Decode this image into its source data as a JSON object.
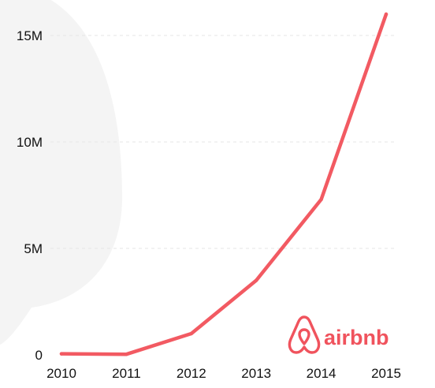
{
  "colors": {
    "line": "#f25a62",
    "grid": "#e6e6e6",
    "text": "#111111",
    "watermark": "#f4f4f4"
  },
  "brand": {
    "name": "airbnb",
    "icon": "airbnb-belo-logo",
    "color": "#f0535d"
  },
  "chart_data": {
    "type": "line",
    "title": "",
    "xlabel": "",
    "ylabel": "",
    "x": [
      2010,
      2011,
      2012,
      2013,
      2014,
      2015
    ],
    "series": [
      {
        "values": [
          0.05,
          0.03,
          1.0,
          3.5,
          7.3,
          16.0
        ]
      }
    ],
    "y_ticks": [
      {
        "value": 0,
        "label": "0"
      },
      {
        "value": 5,
        "label": "5M"
      },
      {
        "value": 10,
        "label": "10M"
      },
      {
        "value": 15,
        "label": "15M"
      }
    ],
    "x_ticks": [
      "2010",
      "2011",
      "2012",
      "2013",
      "2014",
      "2015"
    ],
    "ylim": [
      0,
      16
    ],
    "grid": true,
    "grid_style": "dashed"
  }
}
